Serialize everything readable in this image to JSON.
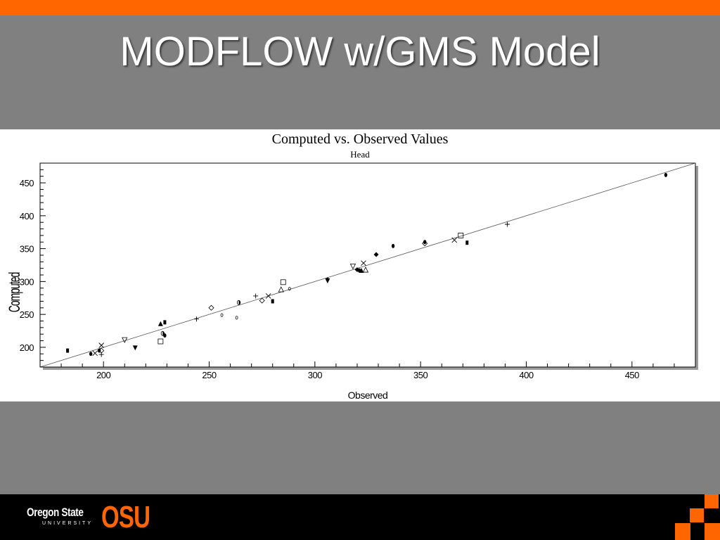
{
  "slide": {
    "title": "MODFLOW w/GMS Model",
    "accent_color": "#ff6600",
    "background_color": "#808080"
  },
  "footer": {
    "logo_line1": "Oregon State",
    "logo_line2": "UNIVERSITY",
    "logo_mark": "OSU",
    "logo_color": "#ff6600"
  },
  "chart_data": {
    "type": "scatter",
    "title": "Computed vs. Observed Values",
    "subtitle": "Head",
    "xlabel": "Observed",
    "ylabel": "Computed",
    "xlim": [
      170,
      480
    ],
    "ylim": [
      170,
      480
    ],
    "xticks": [
      200,
      250,
      300,
      350,
      400,
      450
    ],
    "yticks": [
      200,
      250,
      300,
      350,
      400,
      450
    ],
    "reference_line": "y = x",
    "grid": false,
    "legend": "none",
    "points": [
      {
        "x": 183,
        "y": 195,
        "marker": "square-filled"
      },
      {
        "x": 194,
        "y": 190,
        "marker": "circle-filled"
      },
      {
        "x": 196,
        "y": 191,
        "marker": "cross-x"
      },
      {
        "x": 198,
        "y": 195,
        "marker": "circle-filled"
      },
      {
        "x": 199,
        "y": 203,
        "marker": "cross-x"
      },
      {
        "x": 199,
        "y": 195,
        "marker": "diamond-open"
      },
      {
        "x": 199,
        "y": 189,
        "marker": "plus"
      },
      {
        "x": 210,
        "y": 211,
        "marker": "triangle-down-open"
      },
      {
        "x": 215,
        "y": 199,
        "marker": "triangle-down-filled"
      },
      {
        "x": 227,
        "y": 236,
        "marker": "triangle-up-filled"
      },
      {
        "x": 227,
        "y": 209,
        "marker": "square-open"
      },
      {
        "x": 228,
        "y": 221,
        "marker": "half-circle"
      },
      {
        "x": 229,
        "y": 238,
        "marker": "square-filled"
      },
      {
        "x": 229,
        "y": 218,
        "marker": "circle-filled"
      },
      {
        "x": 244,
        "y": 243,
        "marker": "plus"
      },
      {
        "x": 251,
        "y": 260,
        "marker": "diamond-open"
      },
      {
        "x": 256,
        "y": 249,
        "marker": "ring"
      },
      {
        "x": 263,
        "y": 245,
        "marker": "ring"
      },
      {
        "x": 264,
        "y": 268,
        "marker": "half-circle"
      },
      {
        "x": 272,
        "y": 278,
        "marker": "plus"
      },
      {
        "x": 275,
        "y": 271,
        "marker": "diamond-open"
      },
      {
        "x": 278,
        "y": 278,
        "marker": "cross-x"
      },
      {
        "x": 280,
        "y": 270,
        "marker": "square-filled"
      },
      {
        "x": 284,
        "y": 288,
        "marker": "triangle-up-open"
      },
      {
        "x": 285,
        "y": 299,
        "marker": "square-open"
      },
      {
        "x": 288,
        "y": 289,
        "marker": "ring"
      },
      {
        "x": 306,
        "y": 301,
        "marker": "triangle-down-filled"
      },
      {
        "x": 306,
        "y": 303,
        "marker": "circle-filled"
      },
      {
        "x": 318,
        "y": 323,
        "marker": "triangle-down-open"
      },
      {
        "x": 320,
        "y": 318,
        "marker": "diamond-filled"
      },
      {
        "x": 321,
        "y": 317,
        "marker": "circle-filled"
      },
      {
        "x": 322,
        "y": 317,
        "marker": "triangle-up-filled"
      },
      {
        "x": 323,
        "y": 328,
        "marker": "cross-x"
      },
      {
        "x": 324,
        "y": 318,
        "marker": "triangle-up-open"
      },
      {
        "x": 329,
        "y": 341,
        "marker": "diamond-filled"
      },
      {
        "x": 337,
        "y": 354,
        "marker": "circle-filled"
      },
      {
        "x": 352,
        "y": 358,
        "marker": "diamond-open"
      },
      {
        "x": 352,
        "y": 360,
        "marker": "circle-filled"
      },
      {
        "x": 366,
        "y": 363,
        "marker": "cross-x"
      },
      {
        "x": 369,
        "y": 370,
        "marker": "square-open"
      },
      {
        "x": 372,
        "y": 359,
        "marker": "square-filled"
      },
      {
        "x": 391,
        "y": 387,
        "marker": "plus"
      },
      {
        "x": 466,
        "y": 462,
        "marker": "circle-filled"
      }
    ]
  }
}
